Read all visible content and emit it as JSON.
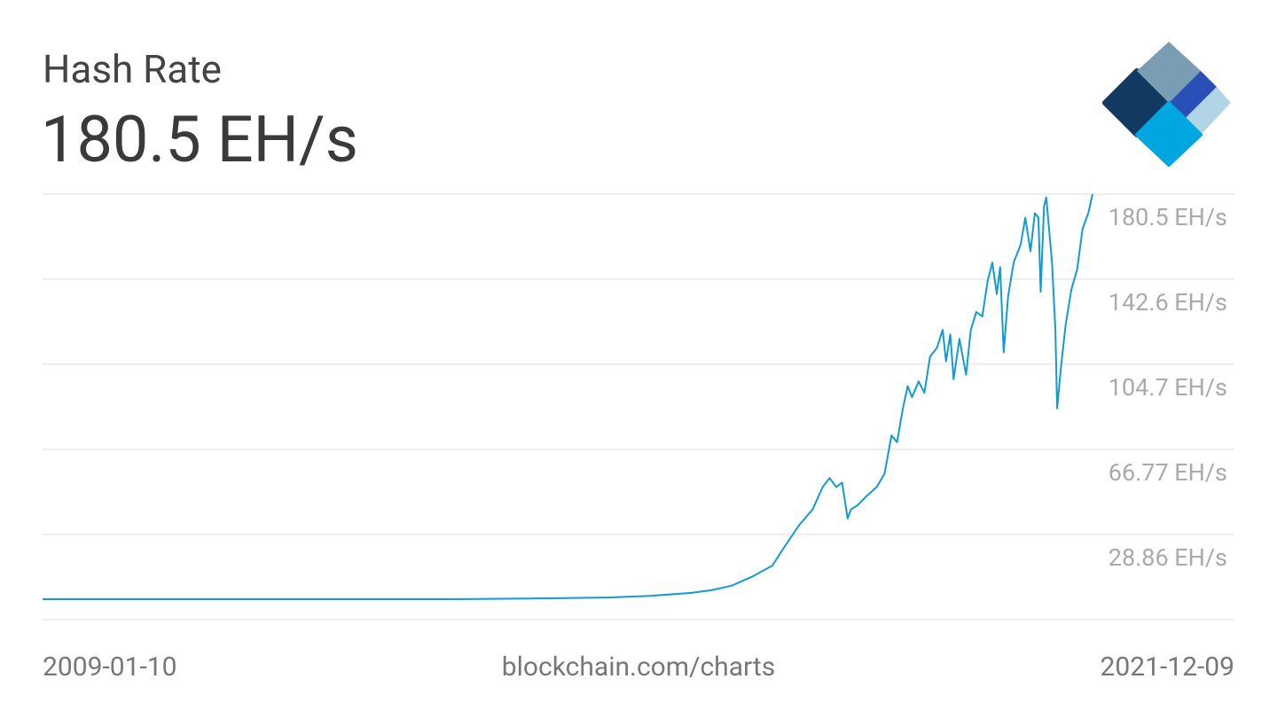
{
  "chart_data": {
    "type": "line",
    "title": "Hash Rate",
    "current_value": "180.5 EH/s",
    "source": "blockchain.com/charts",
    "color": "#119bd5",
    "grid": true,
    "xlim": [
      "2009-01-10",
      "2021-12-09"
    ],
    "ylim": [
      -9.08,
      180.5
    ],
    "yticks": [
      {
        "value": 180.5,
        "label": "180.5 EH/s"
      },
      {
        "value": 142.6,
        "label": "142.6 EH/s"
      },
      {
        "value": 104.7,
        "label": "104.7 EH/s"
      },
      {
        "value": 66.77,
        "label": "66.77 EH/s"
      },
      {
        "value": 28.86,
        "label": "28.86 EH/s"
      }
    ],
    "x": [
      "2009-01-10",
      "2010-06-01",
      "2012-01-01",
      "2014-01-01",
      "2015-01-01",
      "2016-01-01",
      "2016-07-01",
      "2017-01-01",
      "2017-04-01",
      "2017-07-01",
      "2017-10-01",
      "2018-01-01",
      "2018-03-01",
      "2018-05-01",
      "2018-07-01",
      "2018-08-15",
      "2018-09-15",
      "2018-10-15",
      "2018-11-10",
      "2018-12-05",
      "2018-12-20",
      "2019-01-20",
      "2019-03-01",
      "2019-04-15",
      "2019-05-20",
      "2019-06-20",
      "2019-07-15",
      "2019-08-10",
      "2019-09-01",
      "2019-09-20",
      "2019-10-20",
      "2019-11-15",
      "2019-12-10",
      "2020-01-10",
      "2020-02-05",
      "2020-02-20",
      "2020-03-10",
      "2020-03-25",
      "2020-04-20",
      "2020-05-20",
      "2020-06-10",
      "2020-07-05",
      "2020-08-01",
      "2020-08-25",
      "2020-09-15",
      "2020-10-05",
      "2020-10-20",
      "2020-11-05",
      "2020-11-25",
      "2020-12-20",
      "2021-01-20",
      "2021-02-10",
      "2021-03-05",
      "2021-03-25",
      "2021-04-10",
      "2021-04-20",
      "2021-05-05",
      "2021-05-15",
      "2021-05-25",
      "2021-06-10",
      "2021-06-25",
      "2021-07-03",
      "2021-07-20",
      "2021-08-10",
      "2021-09-05",
      "2021-10-01",
      "2021-10-25",
      "2021-11-20",
      "2021-12-09"
    ],
    "values": [
      0,
      0,
      0.01,
      0.01,
      0.3,
      0.8,
      1.5,
      2.8,
      4,
      6,
      10,
      15,
      24,
      33,
      40,
      50,
      54,
      50,
      52,
      36,
      40,
      42,
      46,
      50,
      56,
      73,
      70,
      85,
      95,
      90,
      97,
      92,
      108,
      112,
      120,
      106,
      118,
      98,
      116,
      100,
      120,
      128,
      126,
      142,
      150,
      136,
      148,
      110,
      135,
      150,
      158,
      170,
      155,
      172,
      170,
      137,
      175,
      179,
      168,
      150,
      120,
      85,
      103,
      122,
      138,
      147,
      165,
      172,
      180.5
    ]
  }
}
